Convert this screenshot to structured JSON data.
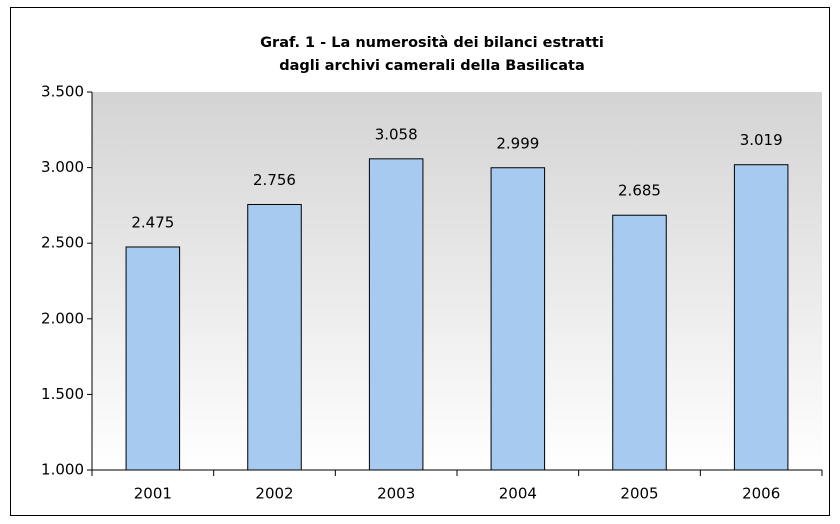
{
  "chart_data": {
    "type": "bar",
    "title": [
      "Graf. 1 - La numerosità dei bilanci estratti",
      "dagli archivi camerali della Basilicata"
    ],
    "categories": [
      "2001",
      "2002",
      "2003",
      "2004",
      "2005",
      "2006"
    ],
    "values": [
      2475,
      2756,
      3058,
      2999,
      2685,
      3019
    ],
    "value_labels": [
      "2.475",
      "2.756",
      "3.058",
      "2.999",
      "2.685",
      "3.019"
    ],
    "color": "#a6caf0",
    "ylim": [
      1000,
      3500
    ],
    "yticks": [
      {
        "value": 1000,
        "label": "1.000"
      },
      {
        "value": 1500,
        "label": "1.500"
      },
      {
        "value": 2000,
        "label": "2.000"
      },
      {
        "value": 2500,
        "label": "2.500"
      },
      {
        "value": 3000,
        "label": "3.000"
      },
      {
        "value": 3500,
        "label": "3.500"
      }
    ],
    "grid": false
  }
}
